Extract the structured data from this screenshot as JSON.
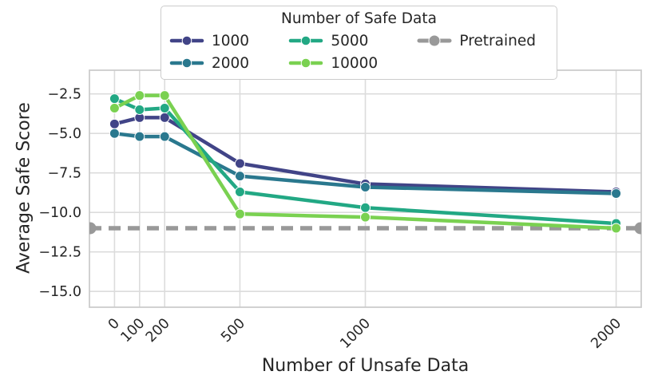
{
  "figure": {
    "background": "#ffffff",
    "text_color": "#262626",
    "grid_color": "#dcdcdc",
    "frame_color": "#cccccc"
  },
  "legend": {
    "title": "Number of Safe Data",
    "columns": [
      [
        {
          "label": "1000",
          "color": "#414487",
          "marker": "normal"
        },
        {
          "label": "2000",
          "color": "#2a788e",
          "marker": "normal"
        }
      ],
      [
        {
          "label": "5000",
          "color": "#22a884",
          "marker": "normal"
        },
        {
          "label": "10000",
          "color": "#7ad151",
          "marker": "normal"
        }
      ],
      [
        {
          "label": "Pretrained",
          "color": "#999999",
          "marker": "large"
        }
      ]
    ]
  },
  "chart_data": {
    "type": "line",
    "title": "",
    "xlabel": "Number of Unsafe Data",
    "ylabel": "Average Safe Score",
    "legend_title": "Number of Safe Data",
    "legend_position": "top-center",
    "grid": true,
    "x": [
      0,
      100,
      200,
      500,
      1000,
      2000
    ],
    "xtick_labels": [
      "0",
      "100",
      "200",
      "500",
      "1000",
      "2000"
    ],
    "xtick_rotation": 45,
    "ytick_values": [
      -2.5,
      -5.0,
      -7.5,
      -10.0,
      -12.5,
      -15.0
    ],
    "ytick_labels": [
      "−2.5",
      "−5.0",
      "−7.5",
      "−10.0",
      "−12.5",
      "−15.0"
    ],
    "xlim": [
      -100,
      2100
    ],
    "ylim": [
      -16,
      -1
    ],
    "series": [
      {
        "name": "1000",
        "color": "#414487",
        "values": [
          -4.4,
          -4.0,
          -4.0,
          -6.9,
          -8.2,
          -8.7
        ]
      },
      {
        "name": "2000",
        "color": "#2a788e",
        "values": [
          -5.0,
          -5.2,
          -5.2,
          -7.7,
          -8.4,
          -8.8
        ]
      },
      {
        "name": "5000",
        "color": "#22a884",
        "values": [
          -2.8,
          -3.5,
          -3.4,
          -8.7,
          -9.7,
          -10.7
        ]
      },
      {
        "name": "10000",
        "color": "#7ad151",
        "values": [
          -3.4,
          -2.6,
          -2.6,
          -10.1,
          -10.3,
          -11.0
        ]
      }
    ],
    "reference_line": {
      "name": "Pretrained",
      "color": "#999999",
      "value": -11.0,
      "style": "dashed"
    }
  }
}
